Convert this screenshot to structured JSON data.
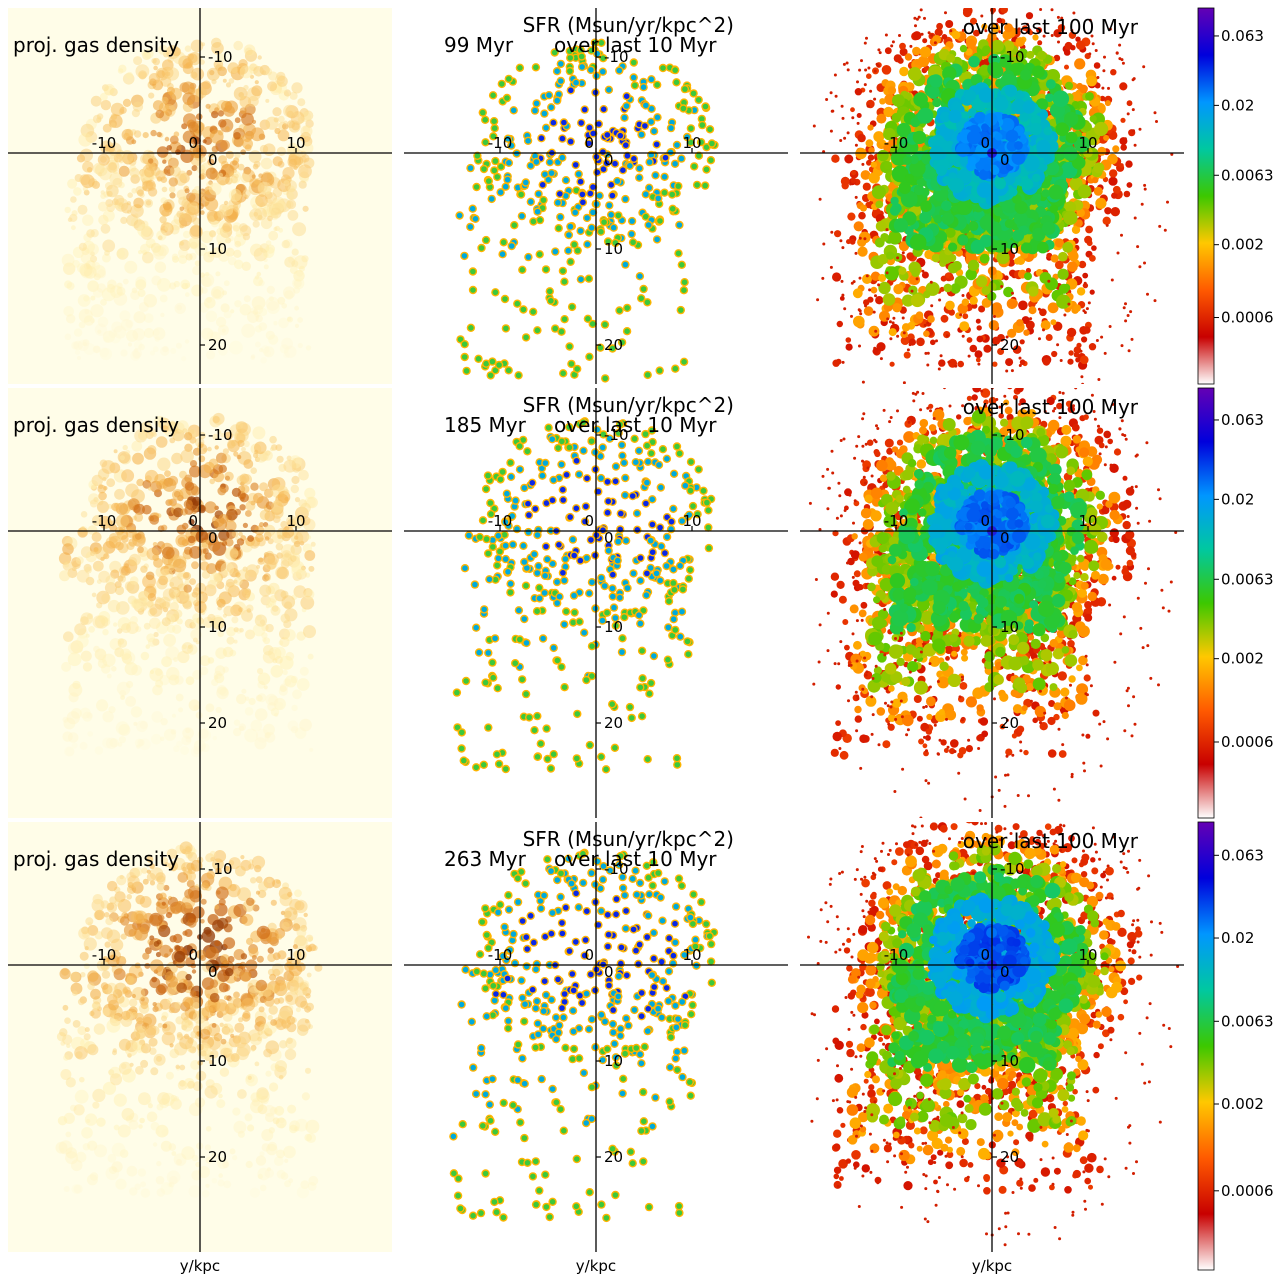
{
  "chart_data": {
    "type": "heatmap",
    "x_axis_label": "y/kpc",
    "axis_ticks": {
      "horizontal": [
        "-10",
        "0",
        "10"
      ],
      "vertical": [
        "-10",
        "0",
        "10",
        "20"
      ]
    },
    "column_titles": {
      "gas": "proj. gas density",
      "sfr_header": "SFR (Msun/yr/kpc^2)",
      "sfr10": "over last 10 Myr",
      "sfr100": "over last 100 Myr"
    },
    "rows": [
      {
        "time": "99 Myr",
        "gas_extent": 0.8,
        "sfr10_extent": 0.78,
        "sfr100_extent": 0.85,
        "central_intensity": 0.55
      },
      {
        "time": "185 Myr",
        "gas_extent": 0.92,
        "sfr10_extent": 0.88,
        "sfr100_extent": 0.95,
        "central_intensity": 0.72
      },
      {
        "time": "263 Myr",
        "gas_extent": 1.0,
        "sfr10_extent": 1.0,
        "sfr100_extent": 1.0,
        "central_intensity": 0.9
      }
    ],
    "colorbar": {
      "scale": "log",
      "range": [
        0.0002,
        0.1
      ],
      "ticks": [
        "0.063",
        "0.02",
        "0.0063",
        "0.002",
        "0.0006"
      ],
      "colormap": [
        "#ffffff",
        "#c80000",
        "#ff5a00",
        "#ffc800",
        "#3cc800",
        "#00c8a0",
        "#0096ff",
        "#0000dc",
        "#6400b4"
      ]
    },
    "gas_colormap": [
      "#fffde8",
      "#ffefb0",
      "#f5b24a",
      "#c9620f",
      "#7a2a05"
    ]
  }
}
